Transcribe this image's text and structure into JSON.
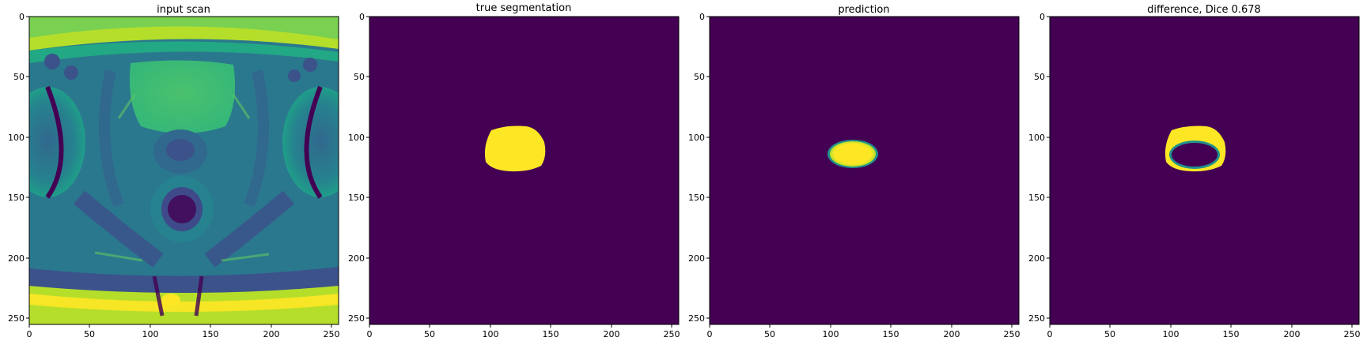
{
  "figure": {
    "colormap": "viridis",
    "colors": {
      "viridis_low": "#440154",
      "viridis_high": "#fde725",
      "axis": "#000000",
      "background": "#ffffff"
    },
    "panels": [
      {
        "title": "input scan",
        "content": "MRI axial pelvic scan",
        "x_ticks": [
          "0",
          "50",
          "100",
          "150",
          "200",
          "250"
        ],
        "y_ticks": [
          "0",
          "50",
          "100",
          "150",
          "200",
          "250"
        ]
      },
      {
        "title": "true segmentation",
        "content": "binary mask",
        "x_ticks": [
          "0",
          "50",
          "100",
          "150",
          "200",
          "250"
        ],
        "y_ticks": [
          "0",
          "50",
          "100",
          "150",
          "200",
          "250"
        ]
      },
      {
        "title": "prediction",
        "content": "predicted mask",
        "x_ticks": [
          "0",
          "50",
          "100",
          "150",
          "200",
          "250"
        ],
        "y_ticks": [
          "0",
          "50",
          "100",
          "150",
          "200",
          "250"
        ]
      },
      {
        "title": "difference, Dice 0.678",
        "content": "difference ring",
        "x_ticks": [
          "0",
          "50",
          "100",
          "150",
          "200",
          "250"
        ],
        "y_ticks": [
          "0",
          "50",
          "100",
          "150",
          "200",
          "250"
        ]
      }
    ]
  }
}
